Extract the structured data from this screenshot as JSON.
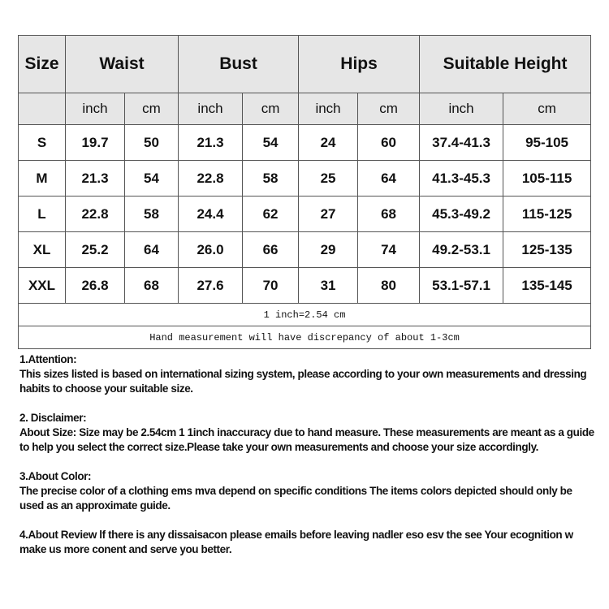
{
  "table": {
    "headers": [
      "Size",
      "Waist",
      "Bust",
      "Hips",
      "Suitable Height"
    ],
    "units": [
      "inch",
      "cm",
      "inch",
      "cm",
      "inch",
      "cm",
      "inch",
      "cm"
    ],
    "rows": [
      [
        "S",
        "19.7",
        "50",
        "21.3",
        "54",
        "24",
        "60",
        "37.4-41.3",
        "95-105"
      ],
      [
        "M",
        "21.3",
        "54",
        "22.8",
        "58",
        "25",
        "64",
        "41.3-45.3",
        "105-115"
      ],
      [
        "L",
        "22.8",
        "58",
        "24.4",
        "62",
        "27",
        "68",
        "45.3-49.2",
        "115-125"
      ],
      [
        "XL",
        "25.2",
        "64",
        "26.0",
        "66",
        "29",
        "74",
        "49.2-53.1",
        "125-135"
      ],
      [
        "XXL",
        "26.8",
        "68",
        "27.6",
        "70",
        "31",
        "80",
        "53.1-57.1",
        "135-145"
      ]
    ],
    "conversion_note": "1 inch=2.54 cm",
    "discrepancy_note": "Hand measurement will have discrepancy of about 1-3cm"
  },
  "notes": [
    {
      "title": "1.Attention:",
      "body": "This sizes listed is based on international sizing system, please according to your own measurements and dressing habits to choose your suitable size."
    },
    {
      "title": "2. Disclaimer:",
      "body": "About Size: Size may be 2.54cm 1 1inch inaccuracy due to hand measure. These measurements are meant as a guide to help you select the correct size.Please take your own measurements and choose your size accordingly."
    },
    {
      "title": "3.About Color:",
      "body": "The precise color of a clothing ems mva depend on specific conditions The items colors depicted should only be used as an approximate guide."
    },
    {
      "title": "",
      "body": "4.About Review lf there is any dissaisacon please emails before leaving nadler eso esv the see Your ecognition w make us more conent and serve you better."
    }
  ]
}
